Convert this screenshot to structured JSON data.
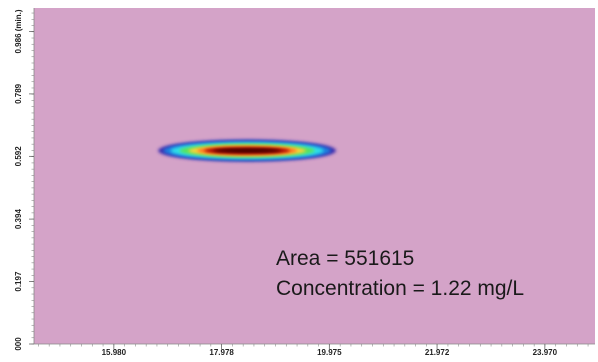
{
  "chart_data": {
    "type": "heatmap",
    "title": "",
    "xlabel": "",
    "ylabel": "",
    "colors": {
      "background": "#d4a3c8",
      "peak_scale": [
        "#3b2db0",
        "#1e7fe0",
        "#2ee0e8",
        "#58e35a",
        "#ffd23a",
        "#ff6a1a",
        "#a00000",
        "#3a0000"
      ]
    },
    "x_ticks": [
      {
        "value": 15.98,
        "label": "15.980"
      },
      {
        "value": 17.978,
        "label": "17.978"
      },
      {
        "value": 19.975,
        "label": "19.975"
      },
      {
        "value": 21.972,
        "label": "21.972"
      },
      {
        "value": 23.97,
        "label": "23.970"
      }
    ],
    "y_ticks": [
      {
        "value": 0.0,
        "label": "000"
      },
      {
        "value": 0.197,
        "label": "0.197"
      },
      {
        "value": 0.394,
        "label": "0.394"
      },
      {
        "value": 0.592,
        "label": "0.592"
      },
      {
        "value": 0.789,
        "label": "0.789"
      },
      {
        "value": 0.986,
        "label": "0.986 (min.)"
      }
    ],
    "xlim": [
      14.5,
      24.9
    ],
    "ylim": [
      0.0,
      1.06
    ],
    "peak": {
      "x_center": 18.45,
      "y_center": 0.61,
      "x_start": 16.65,
      "x_end": 19.95
    },
    "annotations": [
      {
        "key": "area",
        "text": "Area = 551615"
      },
      {
        "key": "concentration",
        "text": "Concentration = 1.22 mg/L"
      }
    ],
    "grid": false,
    "legend": "none"
  }
}
